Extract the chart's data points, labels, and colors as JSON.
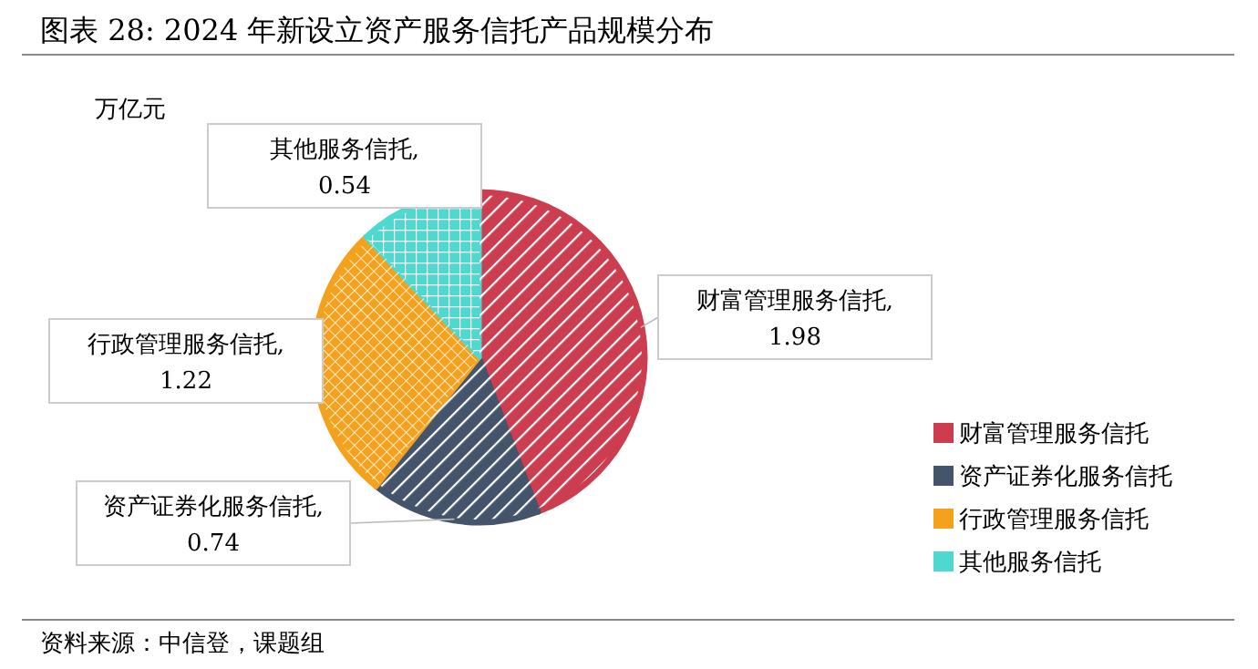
{
  "chart_data": {
    "type": "pie",
    "title": "图表 28: 2024 年新设立资产服务信托产品规模分布",
    "categories": [
      "财富管理服务信托",
      "资产证券化服务信托",
      "行政管理服务信托",
      "其他服务信托"
    ],
    "values": [
      1.98,
      0.74,
      1.22,
      0.54
    ],
    "colors": [
      "#cc3d4f",
      "#44546a",
      "#f4a21d",
      "#4fd8d0"
    ],
    "value_labels": [
      "财富管理服务信托, 1.98",
      "资产证券化服务信托, 0.74",
      "行政管理服务信托, 1.22",
      "其他服务信托, 0.54"
    ],
    "legend": "right",
    "annotations": [
      "万亿元",
      "资料来源：中信登，课题组"
    ]
  }
}
